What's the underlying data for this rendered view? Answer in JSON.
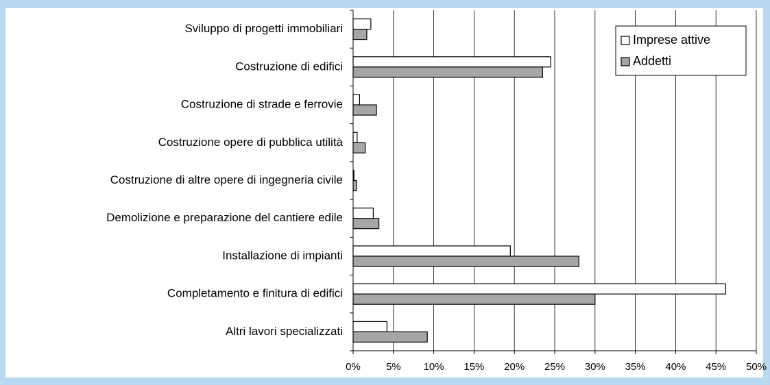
{
  "chart_data": {
    "type": "bar",
    "orientation": "horizontal",
    "categories": [
      "Sviluppo di progetti immobiliari",
      "Costruzione di edifici",
      "Costruzione di strade e ferrovie",
      "Costruzione opere di pubblica utilità",
      "Costruzione di altre opere di ingegneria civile",
      "Demolizione e preparazione del cantiere edile",
      "Installazione di impianti",
      "Completamento e finitura di edifici",
      "Altri lavori specializzati"
    ],
    "series": [
      {
        "name": "Imprese attive",
        "color": "#ffffff",
        "values": [
          2.2,
          24.5,
          0.8,
          0.5,
          0.1,
          2.5,
          19.5,
          46.2,
          4.2
        ]
      },
      {
        "name": "Addetti",
        "color": "#a6a6a6",
        "values": [
          1.7,
          23.5,
          2.9,
          1.5,
          0.4,
          3.2,
          28.0,
          30.0,
          9.2
        ]
      }
    ],
    "xlim": [
      0,
      50
    ],
    "xticks": [
      {
        "value": 0,
        "label": "0%"
      },
      {
        "value": 5,
        "label": "5%"
      },
      {
        "value": 10,
        "label": "10%"
      },
      {
        "value": 15,
        "label": "15%"
      },
      {
        "value": 20,
        "label": "20%"
      },
      {
        "value": 25,
        "label": "25%"
      },
      {
        "value": 30,
        "label": "30%"
      },
      {
        "value": 35,
        "label": "35%"
      },
      {
        "value": 40,
        "label": "40%"
      },
      {
        "value": 45,
        "label": "45%"
      },
      {
        "value": 50,
        "label": "50%"
      }
    ],
    "grid": true,
    "legend": "upper right"
  }
}
